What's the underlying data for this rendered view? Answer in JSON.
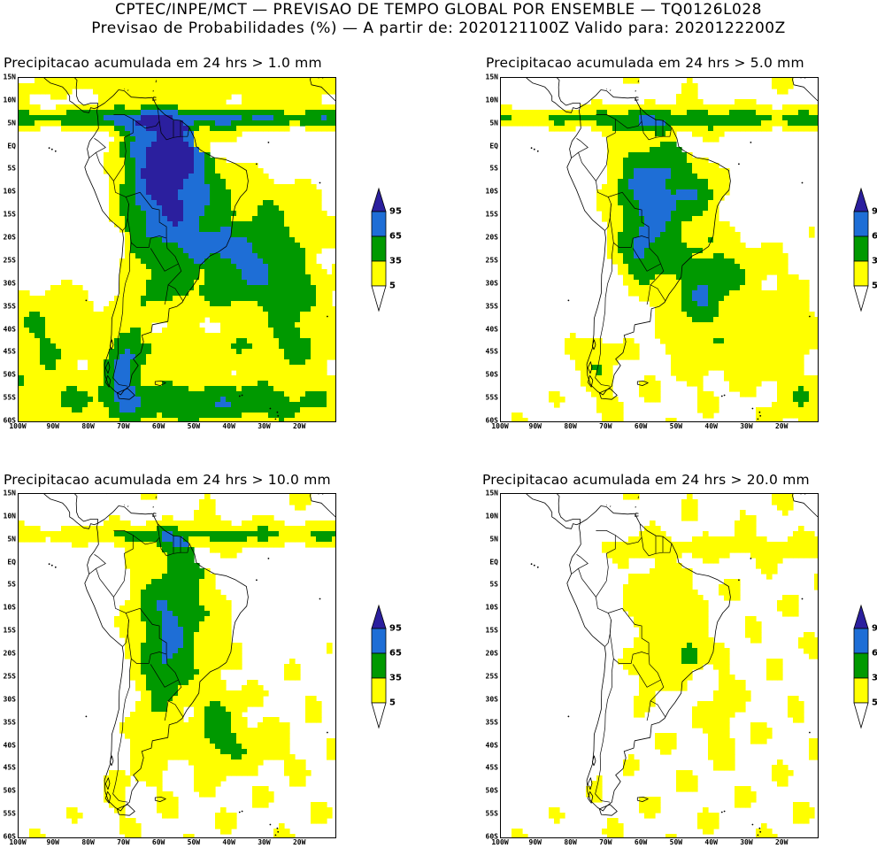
{
  "header": {
    "line1": "CPTEC/INPE/MCT — PREVISAO DE TEMPO GLOBAL POR ENSEMBLE — TQ0126L028",
    "line2": "Previsao de Probabilidades (%) —  A partir de: 2020121100Z  Valido para: 2020122200Z"
  },
  "colors": {
    "p5": "#ffff00",
    "p35": "#009900",
    "p65": "#1e6ed6",
    "p95": "#2b1f9e",
    "land_line": "#000000",
    "background": "#ffffff"
  },
  "axes": {
    "lat_labels": [
      "15N",
      "10N",
      "5N",
      "EQ",
      "5S",
      "10S",
      "15S",
      "20S",
      "25S",
      "30S",
      "35S",
      "40S",
      "45S",
      "50S",
      "55S",
      "60S"
    ],
    "lon_labels": [
      "100W",
      "90W",
      "80W",
      "70W",
      "60W",
      "50W",
      "40W",
      "30W",
      "20W"
    ],
    "lat_range": [
      15,
      -60
    ],
    "lon_range": [
      -100,
      -10
    ]
  },
  "colorbar": {
    "levels": [
      "95",
      "65",
      "35",
      "5"
    ]
  },
  "panels": [
    {
      "title": "Precipitacao acumulada em 24 hrs > 1.0 mm",
      "threshold_mm": 1.0
    },
    {
      "title": "Precipitacao acumulada em 24 hrs > 5.0 mm",
      "threshold_mm": 5.0
    },
    {
      "title": "Precipitacao acumulada em 24 hrs > 10.0 mm",
      "threshold_mm": 10.0
    },
    {
      "title": "Precipitacao acumulada em 24 hrs > 20.0 mm",
      "threshold_mm": 20.0
    }
  ]
}
